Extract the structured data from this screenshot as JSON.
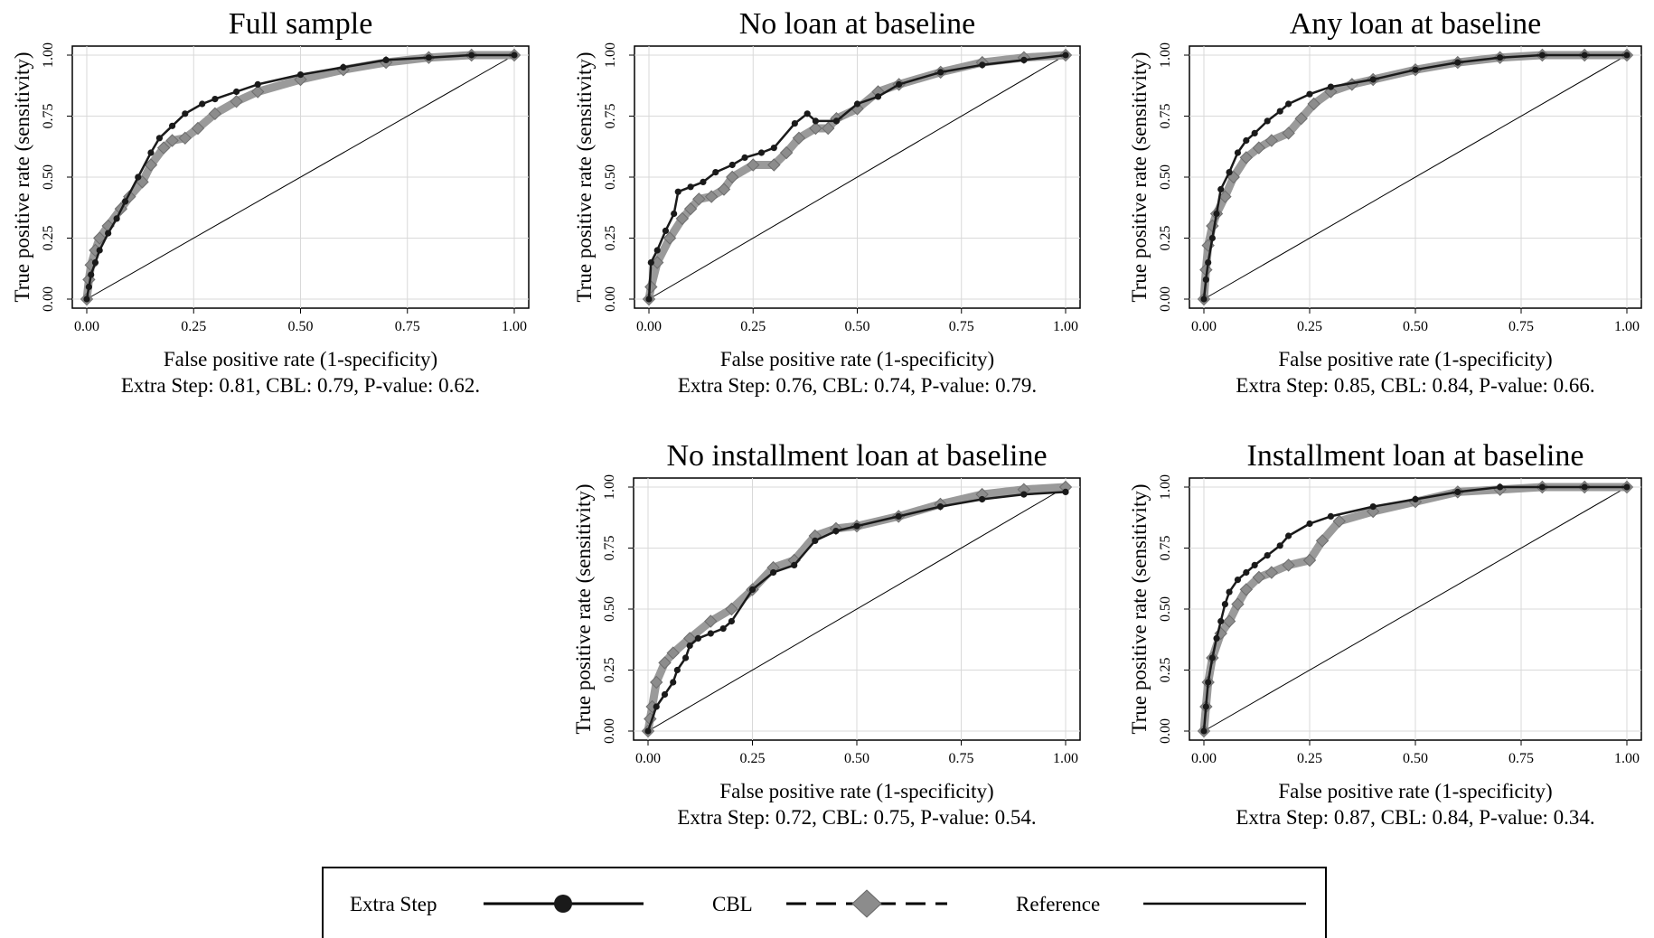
{
  "chart_data": [
    {
      "type": "line",
      "title": "Full sample",
      "xlabel": "False positive rate (1-specificity)",
      "ylabel": "True positive rate (sensitivity)",
      "xlim": [
        0,
        1
      ],
      "ylim": [
        0,
        1
      ],
      "xticks": [
        "0.00",
        "0.25",
        "0.50",
        "0.75",
        "1.00"
      ],
      "yticks": [
        "0.00",
        "0.25",
        "0.50",
        "0.75",
        "1.00"
      ],
      "grid": true,
      "note": "Extra Step: 0.81, CBL: 0.79, P-value: 0.62.",
      "series": [
        {
          "name": "Extra Step",
          "color": "#1a1a1a",
          "marker": "circle",
          "x": [
            0,
            0.005,
            0.01,
            0.02,
            0.03,
            0.05,
            0.07,
            0.09,
            0.12,
            0.15,
            0.17,
            0.2,
            0.23,
            0.27,
            0.3,
            0.35,
            0.4,
            0.5,
            0.6,
            0.7,
            0.8,
            0.9,
            1.0
          ],
          "y": [
            0,
            0.05,
            0.1,
            0.15,
            0.2,
            0.27,
            0.33,
            0.4,
            0.5,
            0.6,
            0.66,
            0.71,
            0.76,
            0.8,
            0.82,
            0.85,
            0.88,
            0.92,
            0.95,
            0.98,
            0.99,
            1.0,
            1.0
          ]
        },
        {
          "name": "CBL",
          "color": "#8c8c8c",
          "marker": "diamond",
          "x": [
            0,
            0.005,
            0.01,
            0.02,
            0.03,
            0.05,
            0.08,
            0.1,
            0.13,
            0.15,
            0.18,
            0.2,
            0.23,
            0.26,
            0.3,
            0.35,
            0.4,
            0.5,
            0.6,
            0.7,
            0.8,
            0.9,
            1.0
          ],
          "y": [
            0,
            0.08,
            0.14,
            0.2,
            0.25,
            0.3,
            0.37,
            0.42,
            0.48,
            0.55,
            0.62,
            0.65,
            0.66,
            0.7,
            0.76,
            0.81,
            0.85,
            0.9,
            0.94,
            0.97,
            0.99,
            1.0,
            1.0
          ]
        },
        {
          "name": "Reference",
          "color": "#000000",
          "marker": "none",
          "x": [
            0,
            1
          ],
          "y": [
            0,
            1
          ]
        }
      ]
    },
    {
      "type": "line",
      "title": "No loan at baseline",
      "xlabel": "False positive rate (1-specificity)",
      "ylabel": "True positive rate (sensitivity)",
      "xlim": [
        0,
        1
      ],
      "ylim": [
        0,
        1
      ],
      "xticks": [
        "0.00",
        "0.25",
        "0.50",
        "0.75",
        "1.00"
      ],
      "yticks": [
        "0.00",
        "0.25",
        "0.50",
        "0.75",
        "1.00"
      ],
      "grid": true,
      "note": "Extra Step: 0.76, CBL: 0.74, P-value: 0.79.",
      "series": [
        {
          "name": "Extra Step",
          "color": "#1a1a1a",
          "marker": "circle",
          "x": [
            0,
            0.005,
            0.02,
            0.04,
            0.06,
            0.07,
            0.1,
            0.13,
            0.16,
            0.2,
            0.23,
            0.27,
            0.3,
            0.35,
            0.38,
            0.4,
            0.45,
            0.5,
            0.55,
            0.6,
            0.7,
            0.8,
            0.9,
            1.0
          ],
          "y": [
            0,
            0.15,
            0.2,
            0.28,
            0.35,
            0.44,
            0.46,
            0.48,
            0.52,
            0.55,
            0.58,
            0.6,
            0.62,
            0.72,
            0.76,
            0.73,
            0.73,
            0.8,
            0.83,
            0.88,
            0.93,
            0.96,
            0.98,
            1.0
          ]
        },
        {
          "name": "CBL",
          "color": "#8c8c8c",
          "marker": "diamond",
          "x": [
            0,
            0.005,
            0.02,
            0.05,
            0.08,
            0.1,
            0.12,
            0.15,
            0.18,
            0.2,
            0.25,
            0.3,
            0.33,
            0.36,
            0.4,
            0.43,
            0.45,
            0.5,
            0.55,
            0.6,
            0.7,
            0.8,
            0.9,
            1.0
          ],
          "y": [
            0,
            0.05,
            0.15,
            0.25,
            0.33,
            0.37,
            0.41,
            0.42,
            0.45,
            0.5,
            0.55,
            0.55,
            0.6,
            0.66,
            0.7,
            0.7,
            0.74,
            0.78,
            0.85,
            0.88,
            0.93,
            0.97,
            0.99,
            1.0
          ]
        },
        {
          "name": "Reference",
          "color": "#000000",
          "marker": "none",
          "x": [
            0,
            1
          ],
          "y": [
            0,
            1
          ]
        }
      ]
    },
    {
      "type": "line",
      "title": "Any loan at baseline",
      "xlabel": "False positive rate (1-specificity)",
      "ylabel": "True positive rate (sensitivity)",
      "xlim": [
        0,
        1
      ],
      "ylim": [
        0,
        1
      ],
      "xticks": [
        "0.00",
        "0.25",
        "0.50",
        "0.75",
        "1.00"
      ],
      "yticks": [
        "0.00",
        "0.25",
        "0.50",
        "0.75",
        "1.00"
      ],
      "grid": true,
      "note": "Extra Step: 0.85, CBL: 0.84, P-value: 0.66.",
      "series": [
        {
          "name": "Extra Step",
          "color": "#1a1a1a",
          "marker": "circle",
          "x": [
            0,
            0.005,
            0.01,
            0.02,
            0.03,
            0.04,
            0.06,
            0.08,
            0.1,
            0.12,
            0.15,
            0.18,
            0.2,
            0.25,
            0.3,
            0.4,
            0.5,
            0.6,
            0.7,
            0.8,
            0.9,
            1.0
          ],
          "y": [
            0,
            0.08,
            0.15,
            0.25,
            0.35,
            0.45,
            0.52,
            0.6,
            0.65,
            0.68,
            0.73,
            0.77,
            0.8,
            0.84,
            0.87,
            0.9,
            0.94,
            0.97,
            0.99,
            1.0,
            1.0,
            1.0
          ]
        },
        {
          "name": "CBL",
          "color": "#8c8c8c",
          "marker": "diamond",
          "x": [
            0,
            0.005,
            0.01,
            0.02,
            0.03,
            0.05,
            0.07,
            0.1,
            0.13,
            0.16,
            0.2,
            0.23,
            0.26,
            0.3,
            0.35,
            0.4,
            0.5,
            0.6,
            0.7,
            0.8,
            0.9,
            1.0
          ],
          "y": [
            0,
            0.12,
            0.22,
            0.3,
            0.35,
            0.42,
            0.5,
            0.58,
            0.62,
            0.65,
            0.68,
            0.74,
            0.8,
            0.85,
            0.88,
            0.9,
            0.94,
            0.97,
            0.99,
            1.0,
            1.0,
            1.0
          ]
        },
        {
          "name": "Reference",
          "color": "#000000",
          "marker": "none",
          "x": [
            0,
            1
          ],
          "y": [
            0,
            1
          ]
        }
      ]
    },
    {
      "type": "line",
      "title": "No installment loan at baseline",
      "xlabel": "False positive rate (1-specificity)",
      "ylabel": "True positive rate (sensitivity)",
      "xlim": [
        0,
        1
      ],
      "ylim": [
        0,
        1
      ],
      "xticks": [
        "0.00",
        "0.25",
        "0.50",
        "0.75",
        "1.00"
      ],
      "yticks": [
        "0.00",
        "0.25",
        "0.50",
        "0.75",
        "1.00"
      ],
      "grid": true,
      "note": "Extra Step: 0.72, CBL: 0.75, P-value: 0.54.",
      "series": [
        {
          "name": "Extra Step",
          "color": "#1a1a1a",
          "marker": "circle",
          "x": [
            0,
            0.02,
            0.04,
            0.06,
            0.07,
            0.09,
            0.1,
            0.12,
            0.15,
            0.18,
            0.2,
            0.25,
            0.3,
            0.35,
            0.4,
            0.45,
            0.5,
            0.6,
            0.7,
            0.8,
            0.9,
            1.0
          ],
          "y": [
            0,
            0.1,
            0.15,
            0.2,
            0.25,
            0.3,
            0.35,
            0.38,
            0.4,
            0.42,
            0.45,
            0.58,
            0.65,
            0.68,
            0.78,
            0.82,
            0.84,
            0.88,
            0.92,
            0.95,
            0.97,
            0.98
          ]
        },
        {
          "name": "CBL",
          "color": "#8c8c8c",
          "marker": "diamond",
          "x": [
            0,
            0.005,
            0.01,
            0.02,
            0.04,
            0.06,
            0.1,
            0.15,
            0.2,
            0.25,
            0.3,
            0.35,
            0.4,
            0.45,
            0.5,
            0.6,
            0.7,
            0.8,
            0.9,
            1.0
          ],
          "y": [
            0,
            0.05,
            0.1,
            0.2,
            0.28,
            0.32,
            0.38,
            0.45,
            0.5,
            0.58,
            0.67,
            0.7,
            0.8,
            0.83,
            0.84,
            0.88,
            0.93,
            0.97,
            0.99,
            1.0
          ]
        },
        {
          "name": "Reference",
          "color": "#000000",
          "marker": "none",
          "x": [
            0,
            1
          ],
          "y": [
            0,
            1
          ]
        }
      ]
    },
    {
      "type": "line",
      "title": "Installment loan at baseline",
      "xlabel": "False positive rate (1-specificity)",
      "ylabel": "True positive rate (sensitivity)",
      "xlim": [
        0,
        1
      ],
      "ylim": [
        0,
        1
      ],
      "xticks": [
        "0.00",
        "0.25",
        "0.50",
        "0.75",
        "1.00"
      ],
      "yticks": [
        "0.00",
        "0.25",
        "0.50",
        "0.75",
        "1.00"
      ],
      "grid": true,
      "note": "Extra Step: 0.87, CBL: 0.84, P-value: 0.34.",
      "series": [
        {
          "name": "Extra Step",
          "color": "#1a1a1a",
          "marker": "circle",
          "x": [
            0,
            0.005,
            0.01,
            0.02,
            0.03,
            0.04,
            0.05,
            0.06,
            0.08,
            0.1,
            0.12,
            0.15,
            0.18,
            0.2,
            0.25,
            0.3,
            0.4,
            0.5,
            0.6,
            0.7,
            0.8,
            0.9,
            1.0
          ],
          "y": [
            0,
            0.1,
            0.2,
            0.3,
            0.38,
            0.45,
            0.52,
            0.57,
            0.62,
            0.65,
            0.68,
            0.72,
            0.76,
            0.8,
            0.85,
            0.88,
            0.92,
            0.95,
            0.98,
            1.0,
            1.0,
            1.0,
            1.0
          ]
        },
        {
          "name": "CBL",
          "color": "#8c8c8c",
          "marker": "diamond",
          "x": [
            0,
            0.005,
            0.01,
            0.02,
            0.04,
            0.06,
            0.08,
            0.1,
            0.13,
            0.16,
            0.2,
            0.25,
            0.28,
            0.32,
            0.4,
            0.5,
            0.6,
            0.7,
            0.8,
            0.9,
            1.0
          ],
          "y": [
            0,
            0.1,
            0.2,
            0.3,
            0.4,
            0.45,
            0.52,
            0.58,
            0.63,
            0.65,
            0.68,
            0.7,
            0.78,
            0.86,
            0.9,
            0.94,
            0.98,
            0.99,
            1.0,
            1.0,
            1.0
          ]
        },
        {
          "name": "Reference",
          "color": "#000000",
          "marker": "none",
          "x": [
            0,
            1
          ],
          "y": [
            0,
            1
          ]
        }
      ]
    }
  ],
  "legend": {
    "items": [
      {
        "label": "Extra Step",
        "style": "solid",
        "marker": "circle",
        "color": "#1a1a1a"
      },
      {
        "label": "CBL",
        "style": "dashed",
        "marker": "diamond",
        "color": "#8c8c8c"
      },
      {
        "label": "Reference",
        "style": "solid",
        "marker": "none",
        "color": "#000000"
      }
    ]
  }
}
